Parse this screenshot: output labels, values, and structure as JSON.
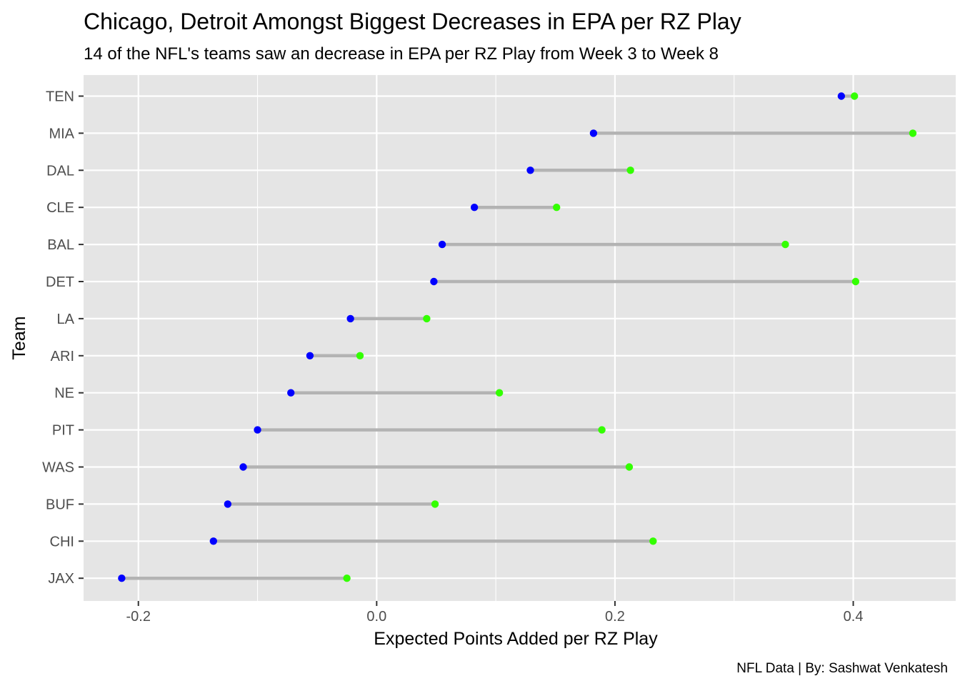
{
  "chart_data": {
    "type": "dumbbell",
    "title": "Chicago, Detroit Amongst Biggest Decreases in EPA per RZ Play",
    "subtitle": "14 of the NFL's teams saw an decrease in EPA per RZ Play from Week 3 to Week 8",
    "xlabel": "Expected Points Added per RZ Play",
    "ylabel": "Team",
    "caption": "NFL Data | By: Sashwat Venkatesh",
    "xlim": [
      -0.246,
      0.486
    ],
    "x_ticks": [
      -0.2,
      0.0,
      0.2,
      0.4
    ],
    "x_tick_labels": [
      "-0.2",
      "0.0",
      "0.2",
      "0.4"
    ],
    "grid": true,
    "colors": {
      "panel_background": "#e5e5e5",
      "grid": "#ffffff",
      "segment": "#b3b3b3",
      "point_low": "#0000ff",
      "point_high": "#33ff00"
    },
    "teams": [
      "TEN",
      "MIA",
      "DAL",
      "CLE",
      "BAL",
      "DET",
      "LA",
      "ARI",
      "NE",
      "PIT",
      "WAS",
      "BUF",
      "CHI",
      "JAX"
    ],
    "series": [
      {
        "color": "blue",
        "values": [
          0.39,
          0.182,
          0.129,
          0.082,
          0.055,
          0.048,
          -0.022,
          -0.056,
          -0.072,
          -0.1,
          -0.112,
          -0.125,
          -0.137,
          -0.214
        ]
      },
      {
        "color": "green",
        "values": [
          0.401,
          0.45,
          0.213,
          0.151,
          0.343,
          0.402,
          0.042,
          -0.014,
          0.103,
          0.189,
          0.212,
          0.049,
          0.232,
          -0.025
        ]
      }
    ]
  }
}
